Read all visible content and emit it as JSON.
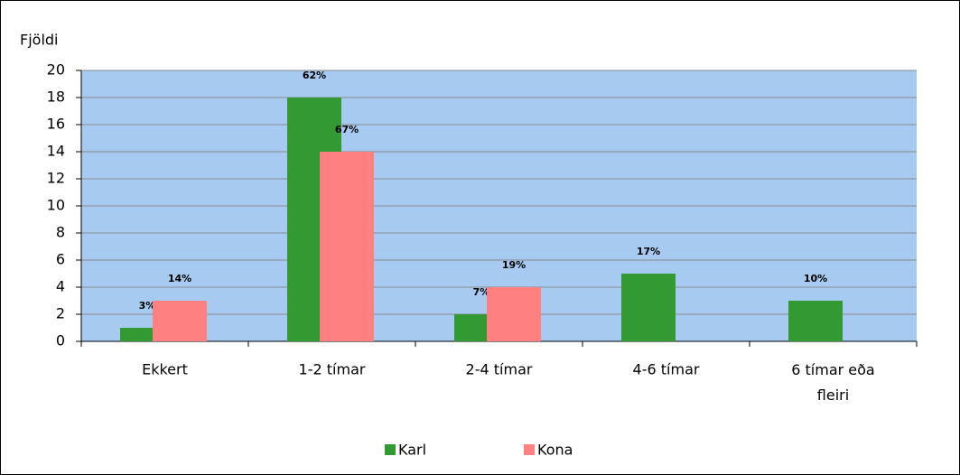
{
  "chart_data": {
    "type": "bar",
    "y_axis_label": "Fjöldi",
    "categories": [
      "Ekkert",
      "1-2 tímar",
      "2-4 tímar",
      "4-6 tímar",
      "6 tímar eða fleiri"
    ],
    "series": [
      {
        "name": "Karl",
        "color": "#339933",
        "values": [
          1,
          18,
          2,
          5,
          3
        ],
        "percent_labels": [
          "3%",
          "62%",
          "7%",
          "17%",
          "10%"
        ]
      },
      {
        "name": "Kona",
        "color": "#ff8080",
        "values": [
          3,
          14,
          4,
          null,
          null
        ],
        "percent_labels": [
          "14%",
          "67%",
          "19%",
          null,
          null
        ]
      }
    ],
    "ylim": [
      0,
      20
    ],
    "yticks": [
      0,
      2,
      4,
      6,
      8,
      10,
      12,
      14,
      16,
      18,
      20
    ],
    "grid": true,
    "plot_background": "#a6caf0",
    "legend": "bottom"
  }
}
